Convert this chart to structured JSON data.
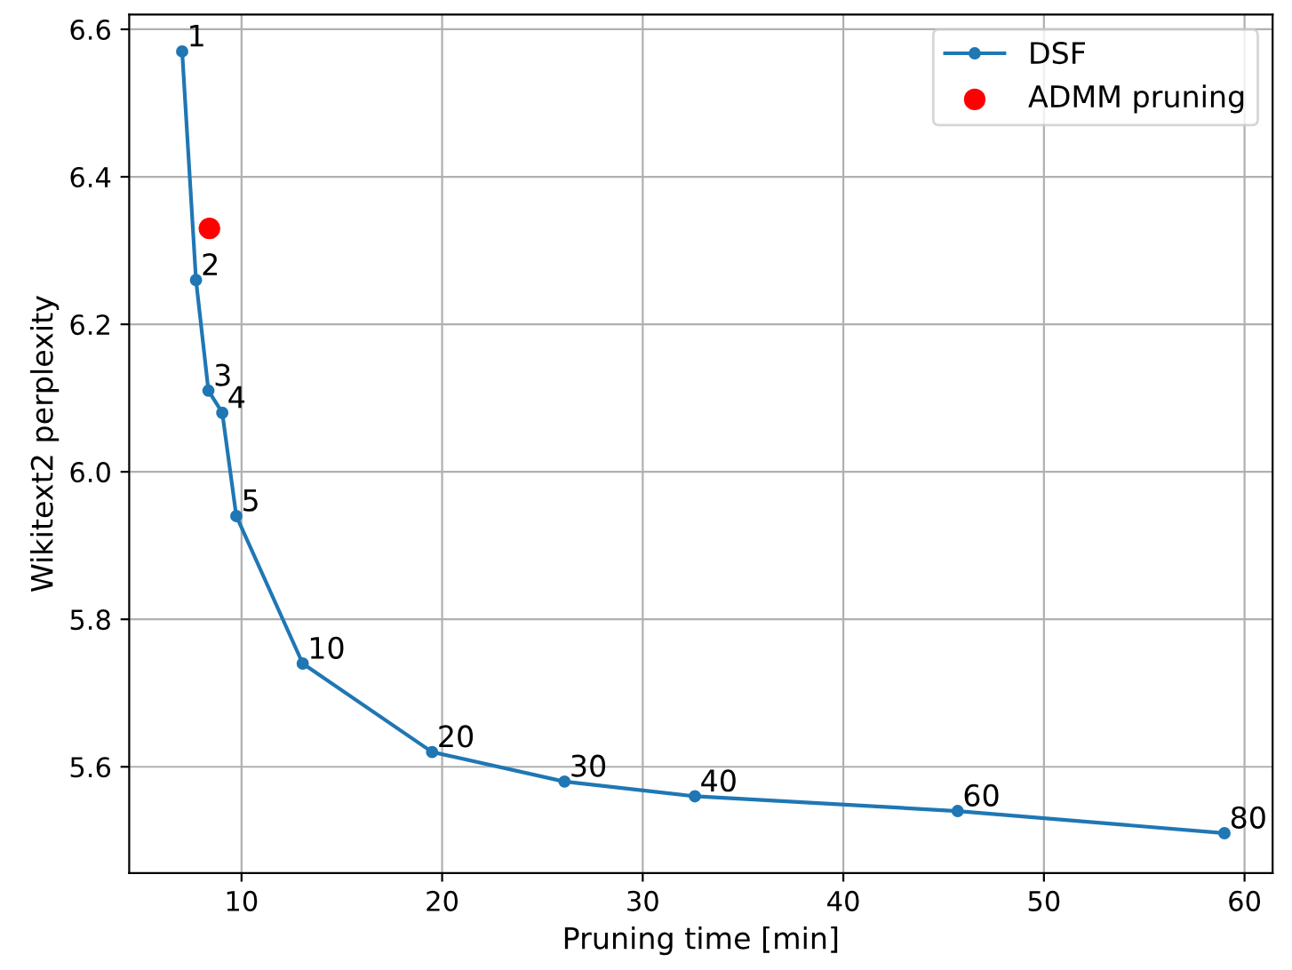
{
  "chart_data": {
    "type": "line",
    "xlabel": "Pruning time [min]",
    "ylabel": "Wikitext2 perplexity",
    "xlim": [
      4.4,
      61.4
    ],
    "ylim": [
      5.456,
      6.62
    ],
    "xticks": [
      10,
      20,
      30,
      40,
      50,
      60
    ],
    "yticks": [
      5.6,
      5.8,
      {
        "value": 6.0,
        "label": "6.0"
      },
      6.2,
      6.4,
      6.6
    ],
    "series": [
      {
        "name": "DSF",
        "color": "#1f77b4",
        "marker": "circle",
        "line_style": "solid",
        "x": [
          7.04,
          7.73,
          8.35,
          9.04,
          9.74,
          13.05,
          19.5,
          26.1,
          32.6,
          45.7,
          59.0
        ],
        "values": [
          6.57,
          6.26,
          6.11,
          6.08,
          5.94,
          5.74,
          5.62,
          5.58,
          5.56,
          5.54,
          5.51
        ]
      },
      {
        "name": "ADMM pruning",
        "type": "scatter",
        "color": "#ff0000",
        "marker": "circle",
        "x": [
          8.4
        ],
        "values": [
          6.33
        ]
      }
    ],
    "annotations": [
      {
        "text": "1",
        "x": 7.04,
        "y": 6.57
      },
      {
        "text": "2",
        "x": 7.73,
        "y": 6.26
      },
      {
        "text": "3",
        "x": 8.35,
        "y": 6.11
      },
      {
        "text": "4",
        "x": 9.04,
        "y": 6.08
      },
      {
        "text": "5",
        "x": 9.74,
        "y": 5.94
      },
      {
        "text": "10",
        "x": 13.05,
        "y": 5.74
      },
      {
        "text": "20",
        "x": 19.5,
        "y": 5.62
      },
      {
        "text": "30",
        "x": 26.1,
        "y": 5.58
      },
      {
        "text": "40",
        "x": 32.6,
        "y": 5.56
      },
      {
        "text": "60",
        "x": 45.7,
        "y": 5.54
      },
      {
        "text": "80",
        "x": 59.0,
        "y": 5.51
      }
    ],
    "grid": true,
    "legend": "top right"
  }
}
